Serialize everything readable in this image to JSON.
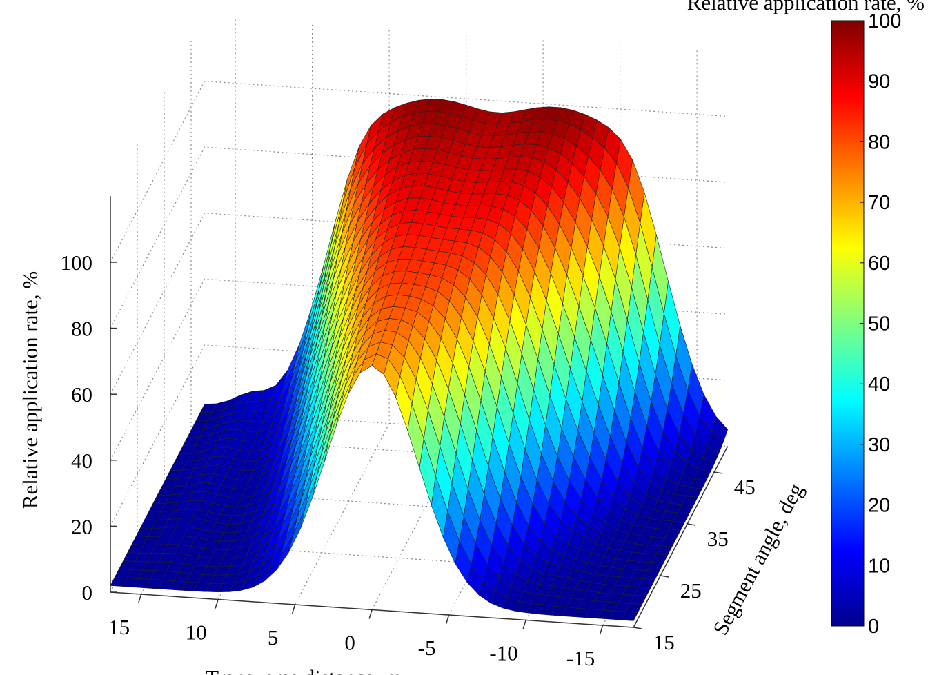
{
  "chart_data": {
    "type": "surface",
    "title": "",
    "xlabel": "Transverse distance, m",
    "ylabel": "Segment angle, deg",
    "zlabel": "Relative application rate, %",
    "colorbar_label": "Relative application rate, %",
    "x_ticks": [
      15,
      10,
      5,
      0,
      -5,
      -10,
      -15
    ],
    "y_ticks": [
      15,
      25,
      35,
      45
    ],
    "z_ticks": [
      0,
      20,
      40,
      60,
      80,
      100
    ],
    "colorbar_ticks": [
      0,
      10,
      20,
      30,
      40,
      50,
      60,
      70,
      80,
      90,
      100
    ],
    "xlim": [
      17,
      -17
    ],
    "ylim": [
      15,
      50
    ],
    "zlim": [
      0,
      100
    ],
    "colormap": "jet",
    "grid": true,
    "surface_description_points": [
      {
        "angle": 15,
        "peak_x": 0,
        "peak_value": 72
      },
      {
        "angle": 50,
        "plateau_from_x": 9,
        "plateau_to_x": -13,
        "plateau_value": 98
      }
    ]
  }
}
